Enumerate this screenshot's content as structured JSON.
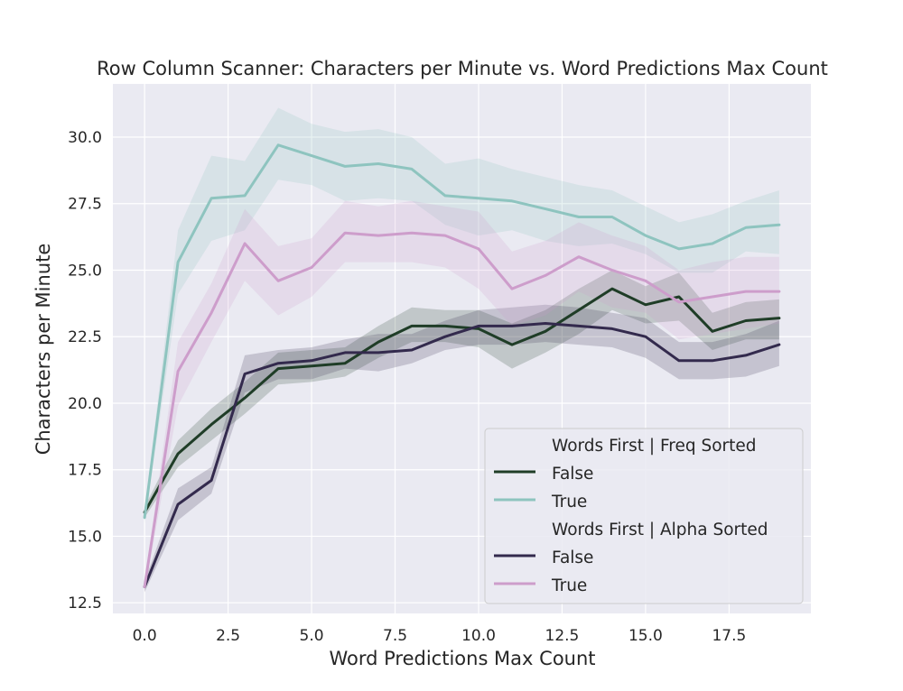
{
  "chart_data": {
    "type": "line",
    "title": "Row Column Scanner: Characters per Minute vs. Word Predictions Max Count",
    "xlabel": "Word Predictions Max Count",
    "ylabel": "Characters per Minute",
    "xlim": [
      -0.95,
      19.95
    ],
    "ylim": [
      12.1,
      32.0
    ],
    "xticks": [
      0.0,
      2.5,
      5.0,
      7.5,
      10.0,
      12.5,
      15.0,
      17.5
    ],
    "xtick_labels": [
      "0.0",
      "2.5",
      "5.0",
      "7.5",
      "10.0",
      "12.5",
      "15.0",
      "17.5"
    ],
    "yticks": [
      12.5,
      15.0,
      17.5,
      20.0,
      22.5,
      25.0,
      27.5,
      30.0
    ],
    "ytick_labels": [
      "12.5",
      "15.0",
      "17.5",
      "20.0",
      "22.5",
      "25.0",
      "27.5",
      "30.0"
    ],
    "grid": true,
    "legend_position": "lower-right",
    "legend_groups": [
      {
        "title": "Words First | Freq Sorted",
        "entries": [
          "False",
          "True"
        ]
      },
      {
        "title": "Words First | Alpha Sorted",
        "entries": [
          "False",
          "True"
        ]
      }
    ],
    "x": [
      0,
      1,
      2,
      3,
      4,
      5,
      6,
      7,
      8,
      9,
      10,
      11,
      12,
      13,
      14,
      15,
      16,
      17,
      18,
      19
    ],
    "series": [
      {
        "name": "False",
        "group": "Words First | Freq Sorted",
        "color": "#1f3d27",
        "band_color": "#1f3d27",
        "values": [
          15.9,
          18.1,
          19.2,
          20.2,
          21.3,
          21.4,
          21.5,
          22.3,
          22.9,
          22.9,
          22.8,
          22.2,
          22.7,
          23.5,
          24.3,
          23.7,
          24.0,
          22.7,
          23.1,
          23.2
        ],
        "lower": [
          15.7,
          17.6,
          18.6,
          19.6,
          20.7,
          20.8,
          21.0,
          21.7,
          22.3,
          22.3,
          22.1,
          21.3,
          21.9,
          22.6,
          23.5,
          23.0,
          23.1,
          22.0,
          22.4,
          22.4
        ],
        "upper": [
          16.1,
          18.6,
          19.8,
          20.8,
          21.9,
          22.0,
          22.1,
          22.9,
          23.6,
          23.5,
          23.5,
          23.0,
          23.5,
          24.3,
          25.0,
          24.4,
          24.9,
          23.4,
          23.8,
          23.9
        ]
      },
      {
        "name": "True",
        "group": "Words First | Freq Sorted",
        "color": "#8ec4bf",
        "band_color": "#8ec4bf",
        "values": [
          15.7,
          25.3,
          27.7,
          27.8,
          29.7,
          29.3,
          28.9,
          29.0,
          28.8,
          27.8,
          27.7,
          27.6,
          27.3,
          27.0,
          27.0,
          26.3,
          25.8,
          26.0,
          26.6,
          26.7
        ],
        "lower": [
          15.5,
          24.1,
          26.1,
          26.5,
          28.4,
          28.2,
          27.6,
          27.7,
          27.6,
          26.7,
          26.3,
          26.5,
          26.1,
          25.9,
          26.0,
          25.6,
          24.9,
          24.9,
          25.7,
          25.6
        ],
        "upper": [
          15.9,
          26.5,
          29.3,
          29.1,
          31.1,
          30.5,
          30.2,
          30.3,
          30.0,
          29.0,
          29.2,
          28.8,
          28.5,
          28.2,
          28.0,
          27.4,
          26.8,
          27.1,
          27.6,
          28.0
        ]
      },
      {
        "name": "False",
        "group": "Words First | Alpha Sorted",
        "color": "#332a4d",
        "band_color": "#332a4d",
        "values": [
          13.1,
          16.2,
          17.1,
          21.1,
          21.5,
          21.6,
          21.9,
          21.9,
          22.0,
          22.5,
          22.9,
          22.9,
          23.0,
          22.9,
          22.8,
          22.5,
          21.6,
          21.6,
          21.8,
          22.2
        ],
        "lower": [
          12.9,
          15.6,
          16.6,
          20.4,
          20.9,
          20.9,
          21.3,
          21.2,
          21.5,
          22.0,
          22.2,
          22.2,
          22.3,
          22.2,
          22.1,
          21.7,
          20.9,
          20.9,
          21.0,
          21.4
        ],
        "upper": [
          13.3,
          16.8,
          17.6,
          21.8,
          22.0,
          22.1,
          22.4,
          22.6,
          22.6,
          23.1,
          23.5,
          23.6,
          23.7,
          23.6,
          23.4,
          23.2,
          22.3,
          22.3,
          22.6,
          23.1
        ]
      },
      {
        "name": "True",
        "group": "Words First | Alpha Sorted",
        "color": "#cd9dcb",
        "band_color": "#cd9dcb",
        "values": [
          13.1,
          21.2,
          23.4,
          26.0,
          24.6,
          25.1,
          26.4,
          26.3,
          26.4,
          26.3,
          25.8,
          24.3,
          24.8,
          25.5,
          25.0,
          24.6,
          23.8,
          24.0,
          24.2,
          24.2
        ],
        "lower": [
          12.9,
          19.9,
          22.3,
          24.6,
          23.3,
          24.0,
          25.3,
          25.3,
          25.3,
          25.1,
          24.3,
          22.9,
          23.3,
          24.2,
          23.6,
          23.4,
          22.4,
          22.6,
          22.8,
          23.0
        ],
        "upper": [
          13.3,
          22.3,
          24.5,
          27.3,
          25.9,
          26.2,
          27.6,
          27.4,
          27.6,
          27.4,
          27.2,
          25.7,
          26.1,
          26.8,
          26.3,
          25.9,
          25.0,
          25.3,
          25.5,
          25.5
        ]
      }
    ]
  }
}
